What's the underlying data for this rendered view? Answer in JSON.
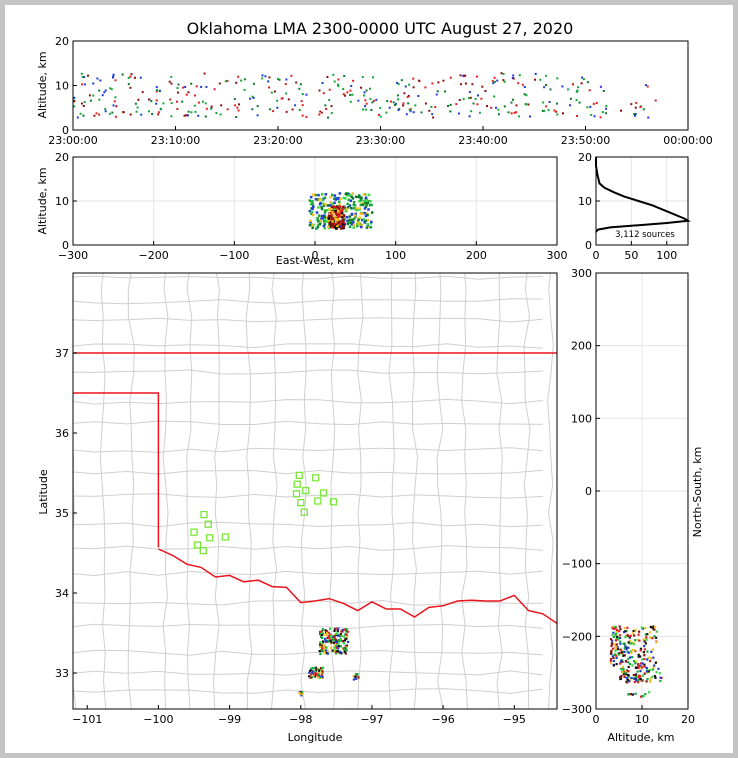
{
  "title": "Oklahoma LMA 2300-0000 UTC August 27, 2020",
  "colors": {
    "border": "#e8141c",
    "county": "#cfcfcf",
    "station": "#7be63a",
    "axis": "#000000"
  },
  "chart_data": [
    {
      "type": "scatter",
      "name": "altitude-time",
      "ylabel": "Altitude, km",
      "ylim": [
        0,
        20
      ],
      "yticks": [
        "0",
        "10",
        "20"
      ],
      "xlim": [
        "23:00:00",
        "00:00:00"
      ],
      "xticks": [
        "23:00:00",
        "23:10:00",
        "23:20:00",
        "23:30:00",
        "23:40:00",
        "23:50:00",
        "00:00:00"
      ],
      "clusters": [
        {
          "t": [
            0,
            60
          ],
          "alt": [
            3,
            13
          ]
        }
      ]
    },
    {
      "type": "scatter",
      "name": "altitude-eastwest",
      "xlabel": "East-West, km",
      "ylabel": "Altitude, km",
      "xlim": [
        -300,
        300
      ],
      "ylim": [
        0,
        20
      ],
      "xticks": [
        "−300",
        "−200",
        "−100",
        "0",
        "100",
        "200",
        "300"
      ],
      "yticks": [
        "0",
        "10",
        "20"
      ],
      "clusters": [
        {
          "x": [
            -8,
            70
          ],
          "alt": [
            4,
            12
          ]
        },
        {
          "x": [
            15,
            35
          ],
          "alt": [
            4,
            9
          ]
        }
      ]
    },
    {
      "type": "line",
      "name": "altitude-histogram",
      "xlim": [
        0,
        130
      ],
      "ylim": [
        0,
        20
      ],
      "xticks": [
        "0",
        "50",
        "100"
      ],
      "yticks": [
        "0",
        "10",
        "20"
      ],
      "annotation": "3,112 sources",
      "profile": [
        [
          0,
          20
        ],
        [
          0,
          18
        ],
        [
          1,
          17
        ],
        [
          2,
          16
        ],
        [
          5,
          14
        ],
        [
          12,
          13
        ],
        [
          25,
          12
        ],
        [
          40,
          11
        ],
        [
          60,
          10
        ],
        [
          80,
          9
        ],
        [
          95,
          8
        ],
        [
          110,
          7
        ],
        [
          125,
          6
        ],
        [
          130,
          5.5
        ],
        [
          100,
          5
        ],
        [
          60,
          4.5
        ],
        [
          20,
          4
        ],
        [
          3,
          3.5
        ],
        [
          0,
          3
        ]
      ]
    },
    {
      "type": "scatter",
      "name": "plan-view",
      "xlabel": "Longitude",
      "ylabel": "Latitude",
      "xlim": [
        -101.2,
        -94.4
      ],
      "ylim": [
        32.55,
        38.0
      ],
      "xticks": [
        "−101",
        "−100",
        "−99",
        "−98",
        "−97",
        "−96",
        "−95"
      ],
      "yticks": [
        "33",
        "34",
        "35",
        "36",
        "37"
      ],
      "stations": [
        [
          -98.02,
          35.47
        ],
        [
          -97.79,
          35.44
        ],
        [
          -98.05,
          35.36
        ],
        [
          -97.93,
          35.28
        ],
        [
          -98.06,
          35.24
        ],
        [
          -97.68,
          35.25
        ],
        [
          -98.0,
          35.13
        ],
        [
          -97.76,
          35.15
        ],
        [
          -97.54,
          35.14
        ],
        [
          -97.95,
          35.01
        ],
        [
          -99.36,
          34.98
        ],
        [
          -99.3,
          34.86
        ],
        [
          -99.5,
          34.76
        ],
        [
          -99.28,
          34.69
        ],
        [
          -99.06,
          34.7
        ],
        [
          -99.45,
          34.6
        ],
        [
          -99.37,
          34.53
        ]
      ],
      "clusters": [
        {
          "lon": [
            -97.75,
            -97.35
          ],
          "lat": [
            33.25,
            33.57
          ]
        },
        {
          "lon": [
            -97.9,
            -97.7
          ],
          "lat": [
            32.95,
            33.08
          ]
        },
        {
          "lon": [
            -98.05,
            -97.95
          ],
          "lat": [
            32.72,
            32.78
          ]
        },
        {
          "lon": [
            -97.3,
            -97.2
          ],
          "lat": [
            32.93,
            33.0
          ]
        }
      ]
    },
    {
      "type": "scatter",
      "name": "northsouth-altitude",
      "xlabel": "Altitude, km",
      "ylabel": "North-South, km",
      "xlim": [
        0,
        20
      ],
      "ylim": [
        -300,
        300
      ],
      "xticks": [
        "0",
        "10",
        "20"
      ],
      "yticks": [
        "300",
        "200",
        "100",
        "0",
        "−100",
        "−200",
        "−300"
      ],
      "clusters": [
        {
          "alt": [
            3,
            13
          ],
          "ns": [
            -240,
            -185
          ]
        },
        {
          "alt": [
            5,
            14
          ],
          "ns": [
            -262,
            -240
          ]
        },
        {
          "alt": [
            6,
            13
          ],
          "ns": [
            -285,
            -275
          ]
        }
      ]
    }
  ]
}
